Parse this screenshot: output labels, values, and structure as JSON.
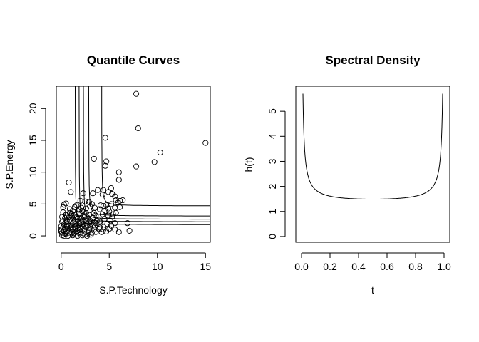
{
  "chart_data": [
    {
      "type": "scatter",
      "title": "Quantile Curves",
      "xlabel": "S.P.Technology",
      "ylabel": "S.P.Energy",
      "xlim": [
        -0.5,
        15.5
      ],
      "ylim": [
        -1,
        23.5
      ],
      "xticks": [
        0,
        5,
        10,
        15
      ],
      "yticks": [
        0,
        5,
        10,
        15,
        20
      ],
      "grid": false,
      "points": [
        [
          7.8,
          22.3
        ],
        [
          8.0,
          16.9
        ],
        [
          4.6,
          15.4
        ],
        [
          15.0,
          14.6
        ],
        [
          10.3,
          13.1
        ],
        [
          3.4,
          12.1
        ],
        [
          9.7,
          11.6
        ],
        [
          4.7,
          11.7
        ],
        [
          4.6,
          11.0
        ],
        [
          7.8,
          10.9
        ],
        [
          6.0,
          10.0
        ],
        [
          6.0,
          8.8
        ],
        [
          0.8,
          8.4
        ],
        [
          1.0,
          6.9
        ],
        [
          4.4,
          7.2
        ],
        [
          3.8,
          7.2
        ],
        [
          5.2,
          7.5
        ],
        [
          4.9,
          6.9
        ],
        [
          4.3,
          6.5
        ],
        [
          5.3,
          6.6
        ],
        [
          5.6,
          6.2
        ],
        [
          3.3,
          6.7
        ],
        [
          2.3,
          6.7
        ],
        [
          6.1,
          5.5
        ],
        [
          5.7,
          5.6
        ],
        [
          5.9,
          5.2
        ],
        [
          6.4,
          5.6
        ],
        [
          5.2,
          5.0
        ],
        [
          4.7,
          4.8
        ],
        [
          4.4,
          4.7
        ],
        [
          5.6,
          4.4
        ],
        [
          6.1,
          4.5
        ],
        [
          0.2,
          4.5
        ],
        [
          0.3,
          4.9
        ],
        [
          0.5,
          5.1
        ],
        [
          2.0,
          5.5
        ],
        [
          2.5,
          5.4
        ],
        [
          2.9,
          5.3
        ],
        [
          3.2,
          5.0
        ],
        [
          1.6,
          4.8
        ],
        [
          1.4,
          4.5
        ],
        [
          3.0,
          4.6
        ],
        [
          3.5,
          4.4
        ],
        [
          4.0,
          4.2
        ],
        [
          4.6,
          3.9
        ],
        [
          5.0,
          3.8
        ],
        [
          5.7,
          3.6
        ],
        [
          4.9,
          3.2
        ],
        [
          5.3,
          3.0
        ],
        [
          4.5,
          2.6
        ],
        [
          5.1,
          2.4
        ],
        [
          5.6,
          2.0
        ],
        [
          4.8,
          1.9
        ],
        [
          5.2,
          1.6
        ],
        [
          4.4,
          1.4
        ],
        [
          6.9,
          2.0
        ],
        [
          7.1,
          0.8
        ],
        [
          5.0,
          1.1
        ],
        [
          4.7,
          0.7
        ],
        [
          6.0,
          0.6
        ],
        [
          5.6,
          1.0
        ],
        [
          4.2,
          0.6
        ],
        [
          3.9,
          1.1
        ],
        [
          3.6,
          0.6
        ],
        [
          4.1,
          1.8
        ],
        [
          3.7,
          2.4
        ],
        [
          3.9,
          3.0
        ],
        [
          3.4,
          3.6
        ],
        [
          3.3,
          2.8
        ],
        [
          2.6,
          3.6
        ],
        [
          2.2,
          3.9
        ],
        [
          1.9,
          4.1
        ],
        [
          1.2,
          3.9
        ],
        [
          0.9,
          3.6
        ],
        [
          0.5,
          3.3
        ],
        [
          0.2,
          3.7
        ],
        [
          0.1,
          3.0
        ],
        [
          0.1,
          2.2
        ],
        [
          0.0,
          1.5
        ],
        [
          0.0,
          0.7
        ],
        [
          0.1,
          0.1
        ],
        [
          0.3,
          0.0
        ],
        [
          0.7,
          0.0
        ],
        [
          1.2,
          0.1
        ],
        [
          1.7,
          0.0
        ],
        [
          2.2,
          0.1
        ],
        [
          2.7,
          0.0
        ],
        [
          3.1,
          0.2
        ],
        [
          0.4,
          0.4
        ],
        [
          0.8,
          0.5
        ],
        [
          1.3,
          0.4
        ],
        [
          1.8,
          0.5
        ],
        [
          2.3,
          0.4
        ],
        [
          2.8,
          0.5
        ],
        [
          3.2,
          0.5
        ],
        [
          0.3,
          0.9
        ],
        [
          0.7,
          1.0
        ],
        [
          1.1,
          0.9
        ],
        [
          1.5,
          1.0
        ],
        [
          1.9,
          0.9
        ],
        [
          2.4,
          1.0
        ],
        [
          2.9,
          0.9
        ],
        [
          3.4,
          1.0
        ],
        [
          0.2,
          1.3
        ],
        [
          0.6,
          1.4
        ],
        [
          1.0,
          1.3
        ],
        [
          1.4,
          1.4
        ],
        [
          1.8,
          1.3
        ],
        [
          2.2,
          1.4
        ],
        [
          2.6,
          1.3
        ],
        [
          3.0,
          1.4
        ],
        [
          3.5,
          1.5
        ],
        [
          0.3,
          1.8
        ],
        [
          0.7,
          1.9
        ],
        [
          1.1,
          1.8
        ],
        [
          1.5,
          1.9
        ],
        [
          1.9,
          1.8
        ],
        [
          2.3,
          1.9
        ],
        [
          2.7,
          1.8
        ],
        [
          3.1,
          1.9
        ],
        [
          0.2,
          2.3
        ],
        [
          0.6,
          2.4
        ],
        [
          1.0,
          2.3
        ],
        [
          1.4,
          2.4
        ],
        [
          1.8,
          2.3
        ],
        [
          2.2,
          2.4
        ],
        [
          2.6,
          2.3
        ],
        [
          3.0,
          2.4
        ],
        [
          3.4,
          2.2
        ],
        [
          0.4,
          2.8
        ],
        [
          0.8,
          2.9
        ],
        [
          1.2,
          2.8
        ],
        [
          1.6,
          2.9
        ],
        [
          2.0,
          2.8
        ],
        [
          2.4,
          2.9
        ],
        [
          2.8,
          2.7
        ],
        [
          0.5,
          3.3
        ],
        [
          1.0,
          3.2
        ],
        [
          1.4,
          3.3
        ],
        [
          1.8,
          3.4
        ],
        [
          2.3,
          3.2
        ],
        [
          2.9,
          3.3
        ],
        [
          0.2,
          0.2
        ],
        [
          0.5,
          0.7
        ],
        [
          0.9,
          0.2
        ],
        [
          1.3,
          0.7
        ],
        [
          1.6,
          0.2
        ],
        [
          2.0,
          0.6
        ],
        [
          2.5,
          0.2
        ],
        [
          0.4,
          1.1
        ],
        [
          0.8,
          1.6
        ],
        [
          1.2,
          1.1
        ],
        [
          1.6,
          1.6
        ],
        [
          2.0,
          1.1
        ],
        [
          2.5,
          1.6
        ],
        [
          0.5,
          2.1
        ],
        [
          0.9,
          2.6
        ],
        [
          1.3,
          2.1
        ],
        [
          1.7,
          2.6
        ],
        [
          2.1,
          2.1
        ],
        [
          2.5,
          2.6
        ],
        [
          0.6,
          3.0
        ],
        [
          1.1,
          3.5
        ],
        [
          1.5,
          3.0
        ],
        [
          2.0,
          3.5
        ],
        [
          1.1,
          0.5
        ],
        [
          1.5,
          1.2
        ],
        [
          1.9,
          2.0
        ],
        [
          0.6,
          1.6
        ],
        [
          1.7,
          0.8
        ],
        [
          3.3,
          1.7
        ],
        [
          3.6,
          2.0
        ],
        [
          4.0,
          2.2
        ],
        [
          4.3,
          3.4
        ],
        [
          3.6,
          3.2
        ],
        [
          2.1,
          4.4
        ],
        [
          2.6,
          4.3
        ],
        [
          0.9,
          4.2
        ],
        [
          4.1,
          4.8
        ],
        [
          4.9,
          4.3
        ],
        [
          5.4,
          3.4
        ],
        [
          4.0,
          1.3
        ],
        [
          4.4,
          1.0
        ],
        [
          0.1,
          0.5
        ],
        [
          0.0,
          1.0
        ]
      ],
      "quantile_curves": [
        {
          "vx": 1.45,
          "hy": 1.75
        },
        {
          "vx": 1.85,
          "hy": 2.2
        },
        {
          "vx": 2.3,
          "hy": 2.6
        },
        {
          "vx": 2.85,
          "hy": 3.1
        },
        {
          "vx": 4.2,
          "hy": 4.7
        }
      ]
    },
    {
      "type": "line",
      "title": "Spectral Density",
      "xlabel": "t",
      "ylabel": "h(t)",
      "xlim": [
        -0.04,
        1.04
      ],
      "ylim": [
        -0.23,
        6.0
      ],
      "xticks": [
        0.0,
        0.2,
        0.4,
        0.6,
        0.8,
        1.0
      ],
      "xtick_labels": [
        "0.0",
        "0.2",
        "0.4",
        "0.6",
        "0.8",
        "1.0"
      ],
      "yticks": [
        0,
        1,
        2,
        3,
        4,
        5
      ],
      "grid": false,
      "t_range": [
        0.01,
        0.99
      ],
      "endpoint_value": 5.7,
      "min_value": 1.49
    }
  ]
}
